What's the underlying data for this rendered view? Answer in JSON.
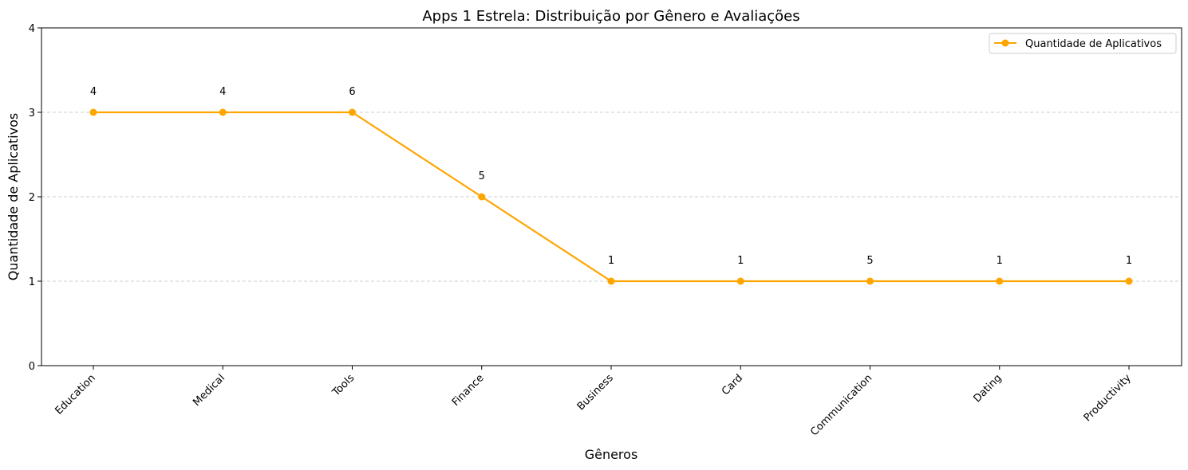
{
  "chart_data": {
    "type": "line",
    "title": "Apps 1 Estrela: Distribuição por Gênero e Avaliações",
    "xlabel": "Gêneros",
    "ylabel": "Quantidade de Aplicativos",
    "categories": [
      "Education",
      "Medical",
      "Tools",
      "Finance",
      "Business",
      "Card",
      "Communication",
      "Dating",
      "Productivity"
    ],
    "series": [
      {
        "name": "Quantidade de Aplicativos",
        "values": [
          3,
          3,
          3,
          2,
          1,
          1,
          1,
          1,
          1
        ],
        "color": "#FFA500",
        "marker": "circle"
      }
    ],
    "data_labels": [
      "4",
      "4",
      "6",
      "5",
      "1",
      "1",
      "5",
      "1",
      "1"
    ],
    "ylim": [
      0,
      4
    ],
    "yticks": [
      0,
      1,
      2,
      3,
      4
    ],
    "grid": "horizontal dashed",
    "legend_position": "top-right"
  }
}
